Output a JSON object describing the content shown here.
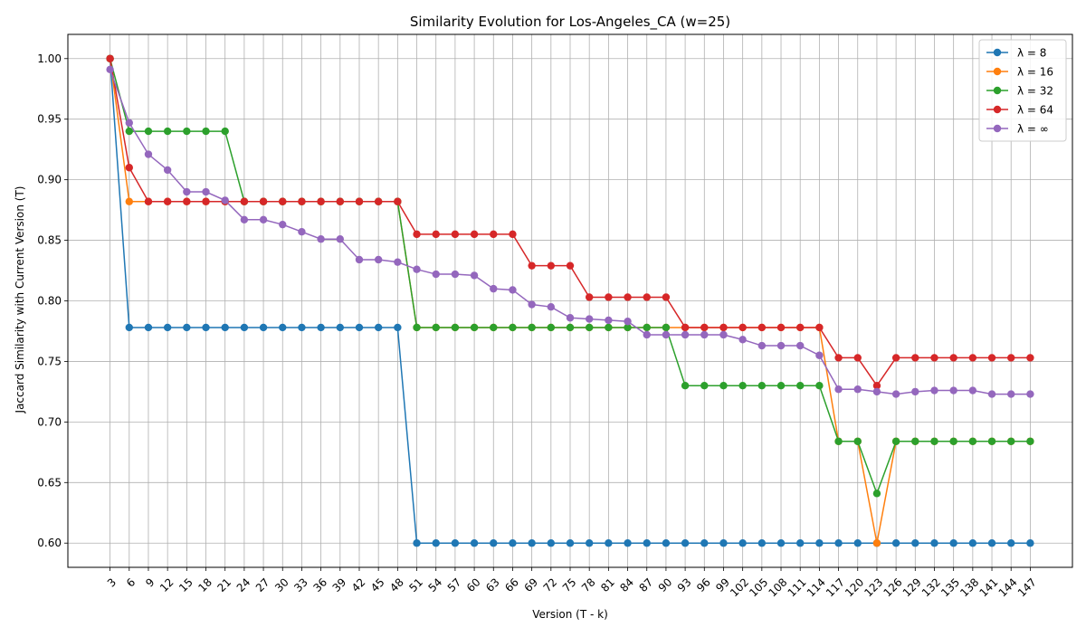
{
  "chart_data": {
    "type": "line",
    "title": "Similarity Evolution for Los-Angeles_CA (w=25)",
    "xlabel": "Version (T - k)",
    "ylabel": "Jaccard Similarity with Current Version (T)",
    "x": [
      3,
      6,
      9,
      12,
      15,
      18,
      21,
      24,
      27,
      30,
      33,
      36,
      39,
      42,
      45,
      48,
      51,
      54,
      57,
      60,
      63,
      66,
      69,
      72,
      75,
      78,
      81,
      84,
      87,
      90,
      93,
      96,
      99,
      102,
      105,
      108,
      111,
      114,
      117,
      120,
      123,
      126,
      129,
      132,
      135,
      138,
      141,
      144,
      147
    ],
    "xticks": [
      "3",
      "6",
      "9",
      "12",
      "15",
      "18",
      "21",
      "24",
      "27",
      "30",
      "33",
      "36",
      "39",
      "42",
      "45",
      "48",
      "51",
      "54",
      "57",
      "60",
      "63",
      "66",
      "69",
      "72",
      "75",
      "78",
      "81",
      "84",
      "87",
      "90",
      "93",
      "96",
      "99",
      "102",
      "105",
      "108",
      "111",
      "114",
      "117",
      "120",
      "123",
      "126",
      "129",
      "132",
      "135",
      "138",
      "141",
      "144",
      "147"
    ],
    "yticks": [
      "0.60",
      "0.65",
      "0.70",
      "0.75",
      "0.80",
      "0.85",
      "0.90",
      "0.95",
      "1.00"
    ],
    "ytick_values": [
      0.6,
      0.65,
      0.7,
      0.75,
      0.8,
      0.85,
      0.9,
      0.95,
      1.0
    ],
    "xlim": [
      -3.6,
      153.6
    ],
    "ylim": [
      0.58,
      1.02
    ],
    "grid": true,
    "legend_position": "top-right",
    "series": [
      {
        "name": "λ = 8",
        "color": "#1f77b4",
        "values": [
          1.0,
          0.778,
          0.778,
          0.778,
          0.778,
          0.778,
          0.778,
          0.778,
          0.778,
          0.778,
          0.778,
          0.778,
          0.778,
          0.778,
          0.778,
          0.778,
          0.6,
          0.6,
          0.6,
          0.6,
          0.6,
          0.6,
          0.6,
          0.6,
          0.6,
          0.6,
          0.6,
          0.6,
          0.6,
          0.6,
          0.6,
          0.6,
          0.6,
          0.6,
          0.6,
          0.6,
          0.6,
          0.6,
          0.6,
          0.6,
          0.6,
          0.6,
          0.6,
          0.6,
          0.6,
          0.6,
          0.6,
          0.6,
          0.6
        ]
      },
      {
        "name": "λ = 16",
        "color": "#ff7f0e",
        "values": [
          1.0,
          0.882,
          0.882,
          0.882,
          0.882,
          0.882,
          0.882,
          0.882,
          0.882,
          0.882,
          0.882,
          0.882,
          0.882,
          0.882,
          0.882,
          0.882,
          0.778,
          0.778,
          0.778,
          0.778,
          0.778,
          0.778,
          0.778,
          0.778,
          0.778,
          0.778,
          0.778,
          0.778,
          0.778,
          0.778,
          0.778,
          0.778,
          0.778,
          0.778,
          0.778,
          0.778,
          0.778,
          0.778,
          0.684,
          0.684,
          0.6,
          0.684,
          0.684,
          0.684,
          0.684,
          0.684,
          0.684,
          0.684,
          0.684
        ]
      },
      {
        "name": "λ = 32",
        "color": "#2ca02c",
        "values": [
          1.0,
          0.94,
          0.94,
          0.94,
          0.94,
          0.94,
          0.94,
          0.882,
          0.882,
          0.882,
          0.882,
          0.882,
          0.882,
          0.882,
          0.882,
          0.882,
          0.778,
          0.778,
          0.778,
          0.778,
          0.778,
          0.778,
          0.778,
          0.778,
          0.778,
          0.778,
          0.778,
          0.778,
          0.778,
          0.778,
          0.73,
          0.73,
          0.73,
          0.73,
          0.73,
          0.73,
          0.73,
          0.73,
          0.684,
          0.684,
          0.641,
          0.684,
          0.684,
          0.684,
          0.684,
          0.684,
          0.684,
          0.684,
          0.684
        ]
      },
      {
        "name": "λ = 64",
        "color": "#d62728",
        "values": [
          1.0,
          0.91,
          0.882,
          0.882,
          0.882,
          0.882,
          0.882,
          0.882,
          0.882,
          0.882,
          0.882,
          0.882,
          0.882,
          0.882,
          0.882,
          0.882,
          0.855,
          0.855,
          0.855,
          0.855,
          0.855,
          0.855,
          0.829,
          0.829,
          0.829,
          0.803,
          0.803,
          0.803,
          0.803,
          0.803,
          0.778,
          0.778,
          0.778,
          0.778,
          0.778,
          0.778,
          0.778,
          0.778,
          0.753,
          0.753,
          0.73,
          0.753,
          0.753,
          0.753,
          0.753,
          0.753,
          0.753,
          0.753,
          0.753
        ]
      },
      {
        "name": "λ = ∞",
        "color": "#9467bd",
        "values": [
          0.991,
          0.947,
          0.921,
          0.908,
          0.89,
          0.89,
          0.883,
          0.867,
          0.867,
          0.863,
          0.857,
          0.851,
          0.851,
          0.834,
          0.834,
          0.832,
          0.826,
          0.822,
          0.822,
          0.821,
          0.81,
          0.809,
          0.797,
          0.795,
          0.786,
          0.785,
          0.784,
          0.783,
          0.772,
          0.772,
          0.772,
          0.772,
          0.772,
          0.768,
          0.763,
          0.763,
          0.763,
          0.755,
          0.727,
          0.727,
          0.725,
          0.723,
          0.725,
          0.726,
          0.726,
          0.726,
          0.723,
          0.723,
          0.723
        ]
      }
    ]
  }
}
